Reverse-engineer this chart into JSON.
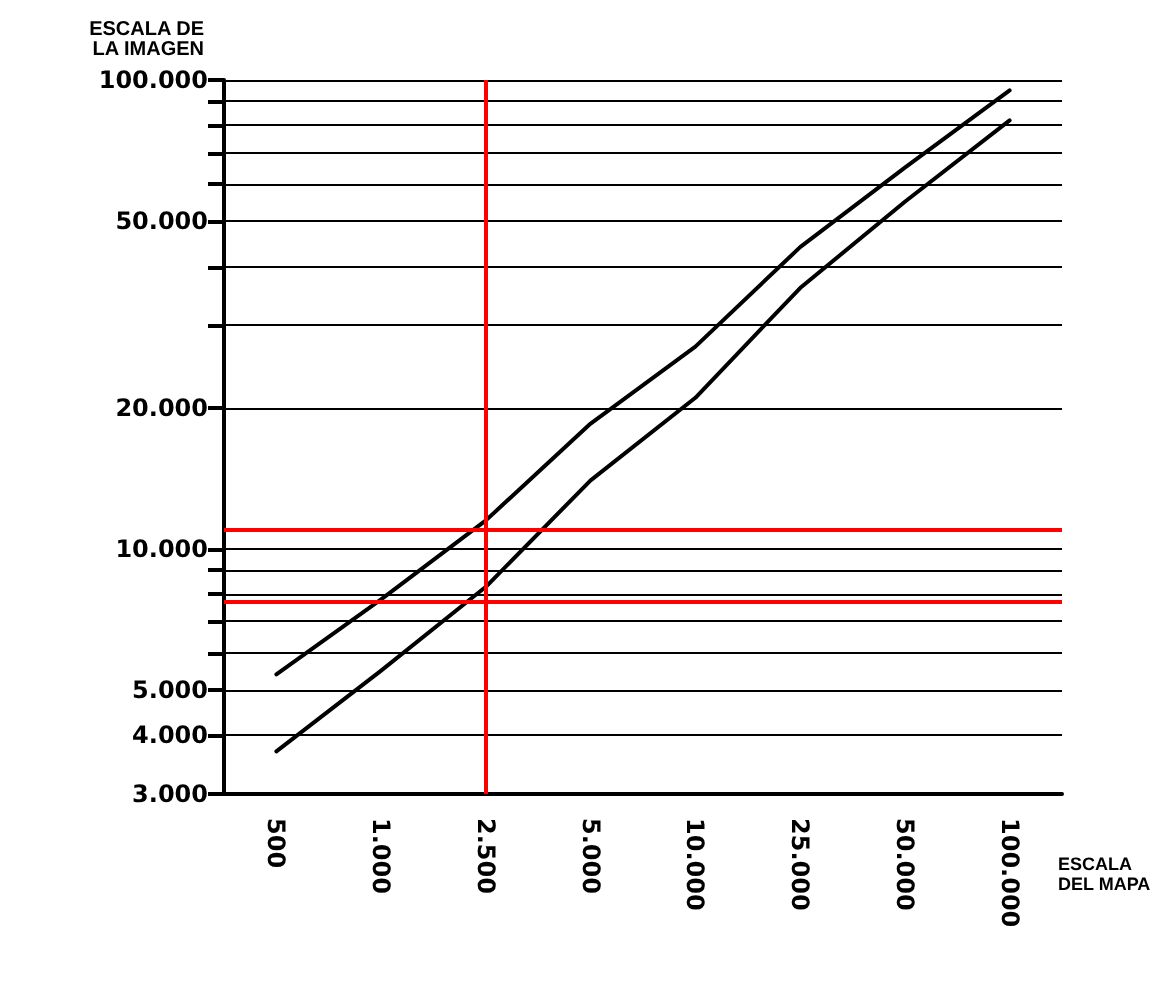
{
  "chart_data": {
    "type": "line",
    "ylabel": "ESCALA DE\nLA IMAGEN",
    "xlabel": "ESCALA\nDEL MAPA",
    "categories": [
      "500",
      "1.000",
      "2.500",
      "5.000",
      "10.000",
      "25.000",
      "50.000",
      "100.000"
    ],
    "series": [
      {
        "color": "#000000",
        "values": [
          3700,
          5500,
          8300,
          14000,
          21000,
          36000,
          55000,
          82000
        ]
      },
      {
        "color": "#000000",
        "values": [
          5400,
          7800,
          11500,
          18500,
          27000,
          44000,
          65000,
          95000
        ]
      }
    ],
    "log": true,
    "ylim": [
      3000,
      100000
    ],
    "yticks": [
      {
        "value": 3000,
        "label": "3.000"
      },
      {
        "value": 4000,
        "label": "4.000"
      },
      {
        "value": 5000,
        "label": "5.000"
      },
      {
        "value": 6000,
        "label": null
      },
      {
        "value": 7000,
        "label": null
      },
      {
        "value": 8000,
        "label": null
      },
      {
        "value": 9000,
        "label": null
      },
      {
        "value": 10000,
        "label": "10.000"
      },
      {
        "value": 20000,
        "label": "20.000"
      },
      {
        "value": 30000,
        "label": null
      },
      {
        "value": 40000,
        "label": null
      },
      {
        "value": 50000,
        "label": "50.000"
      },
      {
        "value": 60000,
        "label": null
      },
      {
        "value": 70000,
        "label": null
      },
      {
        "value": 80000,
        "label": null
      },
      {
        "value": 90000,
        "label": null
      },
      {
        "value": 100000,
        "label": "100.000"
      }
    ],
    "grid": "y",
    "marker": "none",
    "line_style": "solid",
    "ref_lines": [
      {
        "axis": "y",
        "value": 11000,
        "color": "#ff0000"
      },
      {
        "axis": "y",
        "value": 7700,
        "color": "#ff0000"
      },
      {
        "axis": "x",
        "value": "2.500",
        "color": "#ff0000"
      }
    ]
  }
}
